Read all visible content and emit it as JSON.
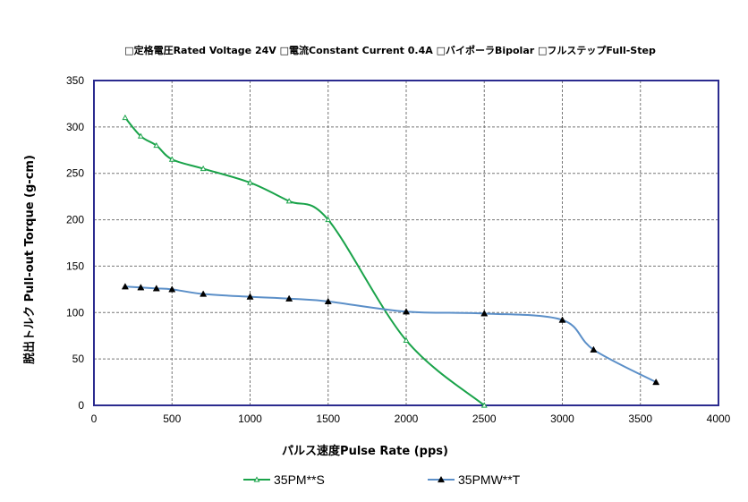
{
  "chart_data": {
    "type": "line",
    "title": "□定格電圧Rated Voltage 24V □電流Constant Current 0.4A □バイポーラBipolar □フルステップFull-Step",
    "xlabel": "パルス速度Pulse Rate (pps)",
    "ylabel": "脱出トルク Pull-out Torque (g-cm)",
    "xlim": [
      0,
      4000
    ],
    "ylim": [
      0,
      350
    ],
    "xticks": [
      0,
      500,
      1000,
      1500,
      2000,
      2500,
      3000,
      3500,
      4000
    ],
    "yticks": [
      0,
      50,
      100,
      150,
      200,
      250,
      300,
      350
    ],
    "grid": true,
    "legend_position": "bottom",
    "series": [
      {
        "name": "35PM**S",
        "color": "#1aa34a",
        "marker": "open-triangle",
        "x": [
          200,
          300,
          400,
          500,
          700,
          1000,
          1250,
          1500,
          2000,
          2500
        ],
        "y": [
          310,
          290,
          280,
          265,
          255,
          240,
          220,
          200,
          70,
          0
        ]
      },
      {
        "name": "35PMW**T",
        "color": "#5b8fc8",
        "marker": "filled-triangle",
        "x": [
          200,
          300,
          400,
          500,
          700,
          1000,
          1250,
          1500,
          2000,
          2500,
          3000,
          3200,
          3600
        ],
        "y": [
          128,
          127,
          126,
          125,
          120,
          117,
          115,
          112,
          101,
          99,
          92,
          60,
          25
        ]
      }
    ]
  }
}
